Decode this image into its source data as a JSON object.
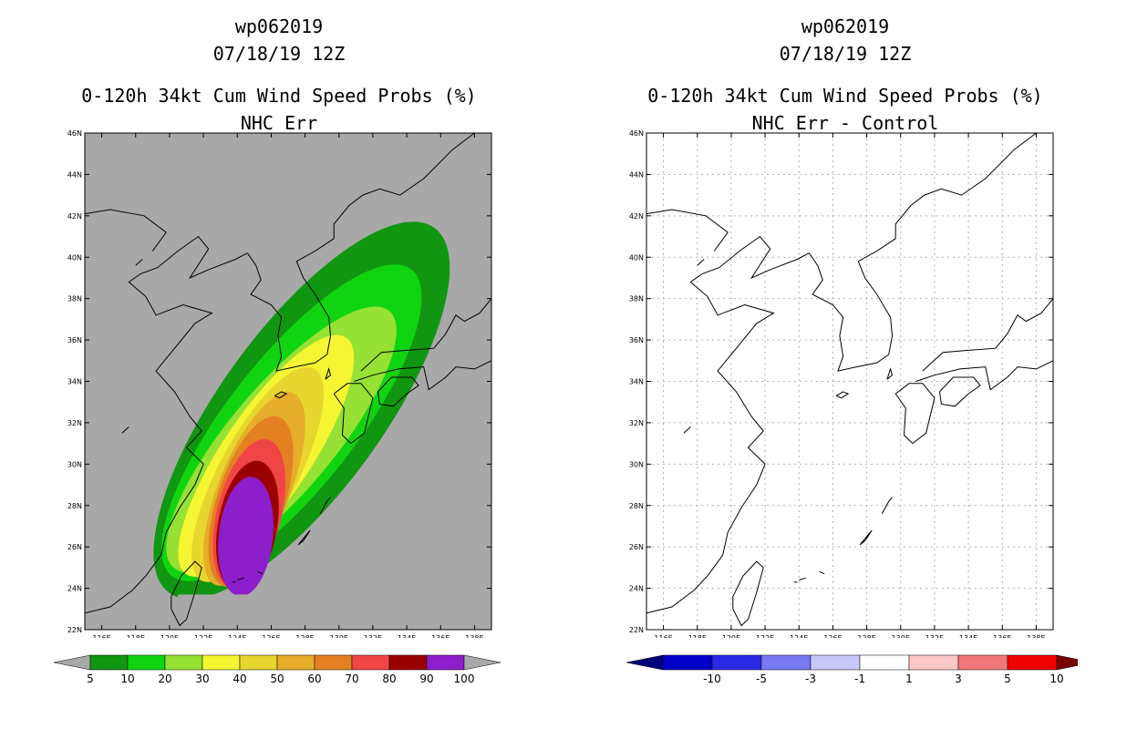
{
  "left": {
    "storm_id": "wp062019",
    "datetime": "07/18/19 12Z",
    "title": "0-120h 34kt Cum Wind Speed Probs (%)",
    "subtitle": "NHC Err",
    "colorbar_labels": [
      "5",
      "10",
      "20",
      "30",
      "40",
      "50",
      "60",
      "70",
      "80",
      "90",
      "100"
    ],
    "colorbar_colors": [
      "#119611",
      "#11d411",
      "#96e133",
      "#f5f533",
      "#e6d62e",
      "#e5ad2a",
      "#e38022",
      "#f04545",
      "#9b0000",
      "#8c1ecc"
    ],
    "under_color": "#a8a8a8",
    "over_color": "#a8a8a8",
    "background_color": "#a8a8a8"
  },
  "right": {
    "storm_id": "wp062019",
    "datetime": "07/18/19 12Z",
    "title": "0-120h 34kt Cum Wind Speed Probs (%)",
    "subtitle": "NHC Err - Control",
    "colorbar_labels": [
      "-10",
      "-5",
      "-3",
      "-1",
      "1",
      "3",
      "5",
      "10"
    ],
    "colorbar_colors": [
      "#0000c8",
      "#2a2ae6",
      "#7878f0",
      "#c8c8f8",
      "#ffffff",
      "#fac8c8",
      "#f07878",
      "#f00000"
    ],
    "under_color": "#00007a",
    "over_color": "#7a0000"
  },
  "map": {
    "lat_labels": [
      "46N",
      "44N",
      "42N",
      "40N",
      "38N",
      "36N",
      "34N",
      "32N",
      "30N",
      "28N",
      "26N",
      "24N",
      "22N"
    ],
    "lon_labels": [
      "116E",
      "118E",
      "120E",
      "122E",
      "124E",
      "126E",
      "128E",
      "130E",
      "132E",
      "134E",
      "136E",
      "138E"
    ]
  },
  "probability_contours": [
    {
      "level": 5,
      "color": "#119611",
      "center_lon": 127.8,
      "center_lat": 32.6,
      "semi_major_deg": 10.9,
      "semi_minor_deg": 4.8,
      "rotation_deg": 36
    },
    {
      "level": 10,
      "color": "#11d411",
      "center_lon": 127.2,
      "center_lat": 32.0,
      "semi_major_deg": 9.4,
      "semi_minor_deg": 3.8,
      "rotation_deg": 38
    },
    {
      "level": 20,
      "color": "#96e133",
      "center_lon": 126.6,
      "center_lat": 31.2,
      "semi_major_deg": 8.1,
      "semi_minor_deg": 3.1,
      "rotation_deg": 40
    },
    {
      "level": 30,
      "color": "#f5f533",
      "center_lon": 125.7,
      "center_lat": 30.4,
      "semi_major_deg": 6.9,
      "semi_minor_deg": 2.6,
      "rotation_deg": 34
    },
    {
      "level": 40,
      "color": "#e6d62e",
      "center_lon": 125.2,
      "center_lat": 29.5,
      "semi_major_deg": 5.8,
      "semi_minor_deg": 2.3,
      "rotation_deg": 28
    },
    {
      "level": 50,
      "color": "#e5ad2a",
      "center_lon": 125.0,
      "center_lat": 28.8,
      "semi_major_deg": 5.0,
      "semi_minor_deg": 2.1,
      "rotation_deg": 22
    },
    {
      "level": 60,
      "color": "#e38022",
      "center_lon": 124.8,
      "center_lat": 28.2,
      "semi_major_deg": 4.3,
      "semi_minor_deg": 2.0,
      "rotation_deg": 18
    },
    {
      "level": 70,
      "color": "#f04545",
      "center_lon": 124.7,
      "center_lat": 27.6,
      "semi_major_deg": 3.7,
      "semi_minor_deg": 1.9,
      "rotation_deg": 14
    },
    {
      "level": 80,
      "color": "#9b0000",
      "center_lon": 124.6,
      "center_lat": 27.0,
      "semi_major_deg": 3.2,
      "semi_minor_deg": 1.75,
      "rotation_deg": 10
    },
    {
      "level": 90,
      "color": "#8c1ecc",
      "center_lon": 124.5,
      "center_lat": 26.5,
      "semi_major_deg": 2.9,
      "semi_minor_deg": 1.6,
      "rotation_deg": 6
    }
  ]
}
